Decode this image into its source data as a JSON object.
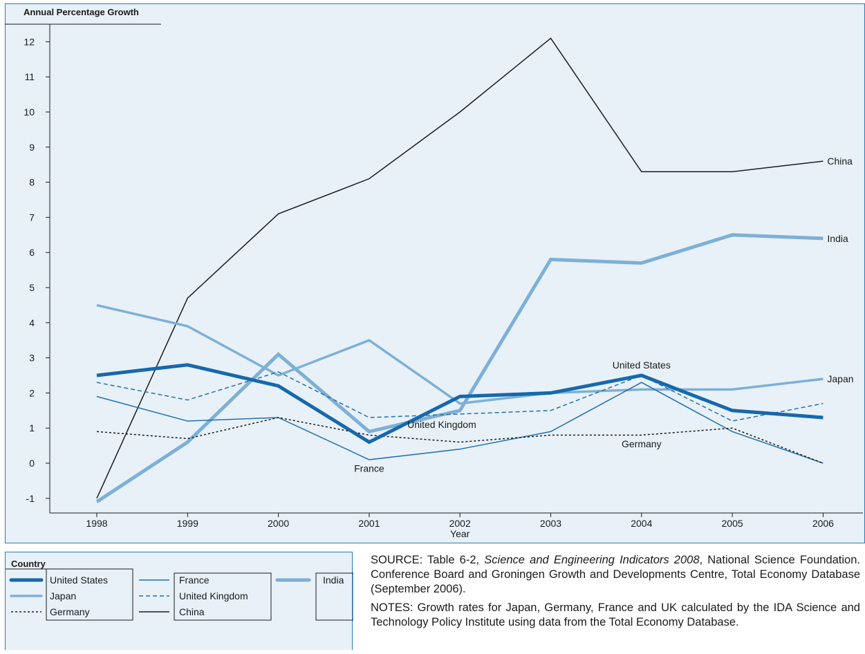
{
  "chart_data": {
    "type": "line",
    "ylabel": "Annual Percentage Growth",
    "xlabel": "Year",
    "x": [
      "1998",
      "1999",
      "2000",
      "2001",
      "2002",
      "2003",
      "2004",
      "2005",
      "2006"
    ],
    "ylim": [
      -1.4,
      12.4
    ],
    "yticks": [
      -1,
      0,
      1,
      2,
      3,
      4,
      5,
      6,
      7,
      8,
      9,
      10,
      11,
      12
    ],
    "series": [
      {
        "name": "China",
        "values": [
          -1.0,
          4.7,
          7.1,
          8.1,
          10.0,
          12.1,
          8.3,
          8.3,
          8.6
        ],
        "color": "#1a1a1a",
        "width": 1.5,
        "dash": "",
        "end_label": "China"
      },
      {
        "name": "India",
        "values": [
          -1.1,
          0.6,
          3.1,
          0.9,
          1.5,
          5.8,
          5.7,
          6.5,
          6.4
        ],
        "color": "#7db0d6",
        "width": 5,
        "dash": "",
        "end_label": "India"
      },
      {
        "name": "Japan",
        "values": [
          4.5,
          3.9,
          2.5,
          3.5,
          1.7,
          2.0,
          2.1,
          2.1,
          2.4
        ],
        "color": "#7db0d6",
        "width": 3.5,
        "dash": "",
        "end_label": "Japan"
      },
      {
        "name": "France",
        "values": [
          1.9,
          1.2,
          1.3,
          0.1,
          0.4,
          0.9,
          2.3,
          0.9,
          0.0
        ],
        "color": "#1f6fb0",
        "width": 1.5,
        "dash": "",
        "end_label": ""
      },
      {
        "name": "United Kingdom",
        "values": [
          2.3,
          1.8,
          2.6,
          1.3,
          1.4,
          1.5,
          2.5,
          1.2,
          1.7
        ],
        "color": "#1f6fb0",
        "width": 1.5,
        "dash": "6,4",
        "end_label": ""
      },
      {
        "name": "Germany",
        "values": [
          0.9,
          0.7,
          1.3,
          0.8,
          0.6,
          0.8,
          0.8,
          1.0,
          0.0
        ],
        "color": "#1a1a1a",
        "width": 1.5,
        "dash": "3,3",
        "end_label": ""
      },
      {
        "name": "United States",
        "values": [
          2.5,
          2.8,
          2.2,
          0.6,
          1.9,
          2.0,
          2.5,
          1.5,
          1.3
        ],
        "color": "#1668ac",
        "width": 5,
        "dash": "",
        "end_label": ""
      }
    ],
    "annotations": [
      {
        "text": "United States",
        "x": "2004",
        "y": 2.8
      },
      {
        "text": "United Kingdom",
        "x": "2001.8",
        "y": 1.1
      },
      {
        "text": "Germany",
        "x": "2004",
        "y": 0.55
      },
      {
        "text": "France",
        "x": "2001",
        "y": -0.15
      }
    ]
  },
  "legend": {
    "title": "Country",
    "items": [
      {
        "label": "United States",
        "color": "#1668ac",
        "width": 5,
        "dash": ""
      },
      {
        "label": "Japan",
        "color": "#7db0d6",
        "width": 3.5,
        "dash": ""
      },
      {
        "label": "Germany",
        "color": "#1a1a1a",
        "width": 1.5,
        "dash": "3,3"
      },
      {
        "label": "France",
        "color": "#1f6fb0",
        "width": 1.5,
        "dash": ""
      },
      {
        "label": "United Kingdom",
        "color": "#1f6fb0",
        "width": 1.5,
        "dash": "6,4"
      },
      {
        "label": "China",
        "color": "#1a1a1a",
        "width": 1.5,
        "dash": ""
      },
      {
        "label": "India",
        "color": "#7db0d6",
        "width": 5,
        "dash": ""
      }
    ]
  },
  "notes": {
    "source_prefix": "SOURCE: Table 6-2, ",
    "source_italic": "Science and Engineering Indicators 2008",
    "source_suffix": ", National Science Foundation. Conference Board and Groningen Growth and Developments Centre, Total  Economy Database (September 2006).",
    "notes_text": "NOTES: Growth rates for Japan, Germany, France and UK calculated by the IDA Science and Technology Policy Institute using data from the Total Economy Database."
  }
}
